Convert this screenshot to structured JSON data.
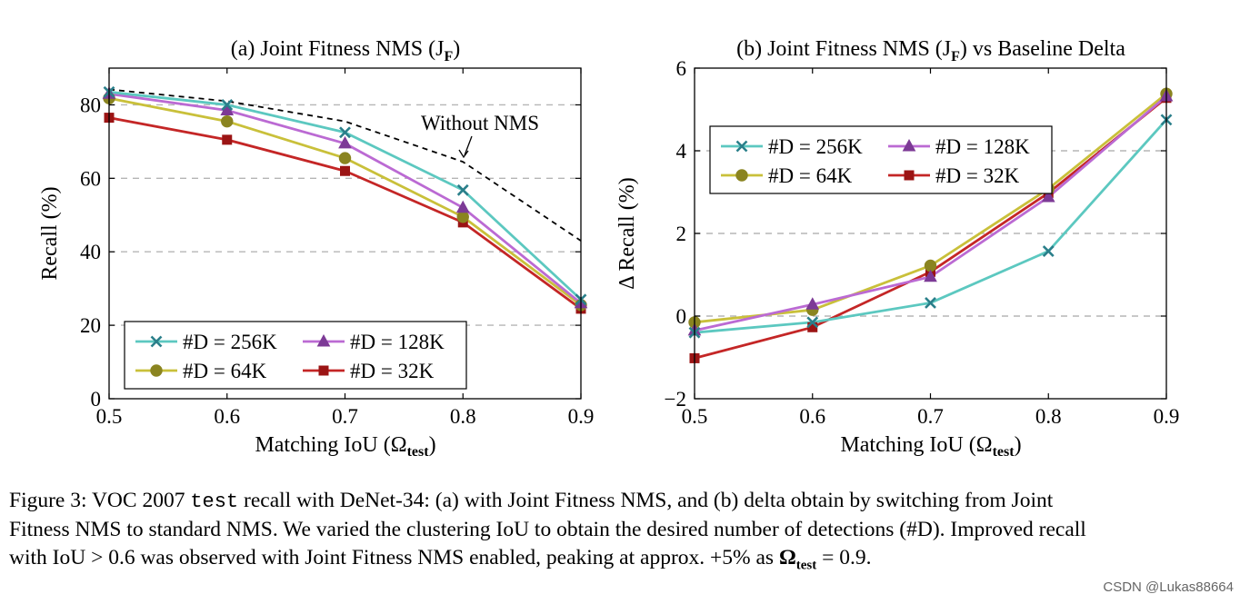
{
  "chart_data": [
    {
      "type": "line",
      "title": "(a) Joint Fitness NMS (J",
      "title_sub": "F",
      "title_close": ")",
      "xlabel": "Matching IoU (Ω",
      "xlabel_sub": "test",
      "xlabel_close": ")",
      "ylabel": "Recall (%)",
      "x": [
        0.5,
        0.6,
        0.7,
        0.8,
        0.9
      ],
      "xlim": [
        0.5,
        0.9
      ],
      "ylim": [
        0,
        90
      ],
      "xticks": [
        "0.5",
        "0.6",
        "0.7",
        "0.8",
        "0.9"
      ],
      "yticks": [
        0,
        20,
        40,
        60,
        80
      ],
      "ytick_labels": [
        "0",
        "20",
        "40",
        "60",
        "80"
      ],
      "grid": "horizontal dashed",
      "legend": "bottom-left",
      "series": [
        {
          "name": "#D = 256K",
          "color": "#5cc8c0",
          "marker": "x",
          "values": [
            83.5,
            80.0,
            72.5,
            56.8,
            27.0
          ]
        },
        {
          "name": "#D = 128K",
          "color": "#bb6ad3",
          "marker": "triangle",
          "values": [
            83.0,
            78.5,
            69.5,
            52.0,
            26.0
          ]
        },
        {
          "name": "#D = 64K",
          "color": "#c9c03a",
          "marker": "circle",
          "values": [
            81.8,
            75.5,
            65.5,
            49.5,
            25.5
          ]
        },
        {
          "name": "#D = 32K",
          "color": "#c42626",
          "marker": "square",
          "values": [
            76.5,
            70.5,
            62.0,
            48.0,
            24.5
          ]
        }
      ],
      "reference_line": {
        "name": "Without NMS",
        "style": "dashed",
        "color": "#000000",
        "values": [
          84.2,
          81.0,
          75.5,
          64.5,
          43.0
        ]
      },
      "annotation": "Without NMS"
    },
    {
      "type": "line",
      "title": "(b) Joint Fitness NMS (J",
      "title_sub": "F",
      "title_close": ") vs Baseline Delta",
      "xlabel": "Matching IoU (Ω",
      "xlabel_sub": "test",
      "xlabel_close": ")",
      "ylabel": "Δ Recall (%)",
      "x": [
        0.5,
        0.6,
        0.7,
        0.8,
        0.9
      ],
      "xlim": [
        0.5,
        0.9
      ],
      "ylim": [
        -2,
        6
      ],
      "xticks": [
        "0.5",
        "0.6",
        "0.7",
        "0.8",
        "0.9"
      ],
      "yticks": [
        -2,
        0,
        2,
        4,
        6
      ],
      "ytick_labels": [
        "−2",
        "0",
        "2",
        "4",
        "6"
      ],
      "grid": "horizontal dashed",
      "legend": "top-left",
      "series": [
        {
          "name": "#D = 256K",
          "color": "#5cc8c0",
          "marker": "x",
          "values": [
            -0.4,
            -0.15,
            0.32,
            1.57,
            4.75
          ]
        },
        {
          "name": "#D = 128K",
          "color": "#bb6ad3",
          "marker": "triangle",
          "values": [
            -0.35,
            0.28,
            0.95,
            2.88,
            5.32
          ]
        },
        {
          "name": "#D = 64K",
          "color": "#c9c03a",
          "marker": "circle",
          "values": [
            -0.15,
            0.15,
            1.22,
            3.08,
            5.38
          ]
        },
        {
          "name": "#D = 32K",
          "color": "#c42626",
          "marker": "square",
          "values": [
            -1.02,
            -0.27,
            1.07,
            2.98,
            5.28
          ]
        }
      ]
    }
  ],
  "caption": {
    "line1_a": "Figure 3: VOC 2007 ",
    "line1_tt": "test",
    "line1_b": " recall with DeNet-34: (a) with Joint Fitness NMS, and (b) delta obtain by switching from Joint",
    "line2": "Fitness NMS to standard NMS. We varied the clustering IoU to obtain the desired number of detections (#D). Improved recall",
    "line3_a": "with IoU > 0.6 was observed with Joint Fitness NMS enabled, peaking at approx. +5% as ",
    "line3_sym": "Ω",
    "line3_sub": "test",
    "line3_b": " = 0.9."
  },
  "watermark": "CSDN @Lukas88664"
}
